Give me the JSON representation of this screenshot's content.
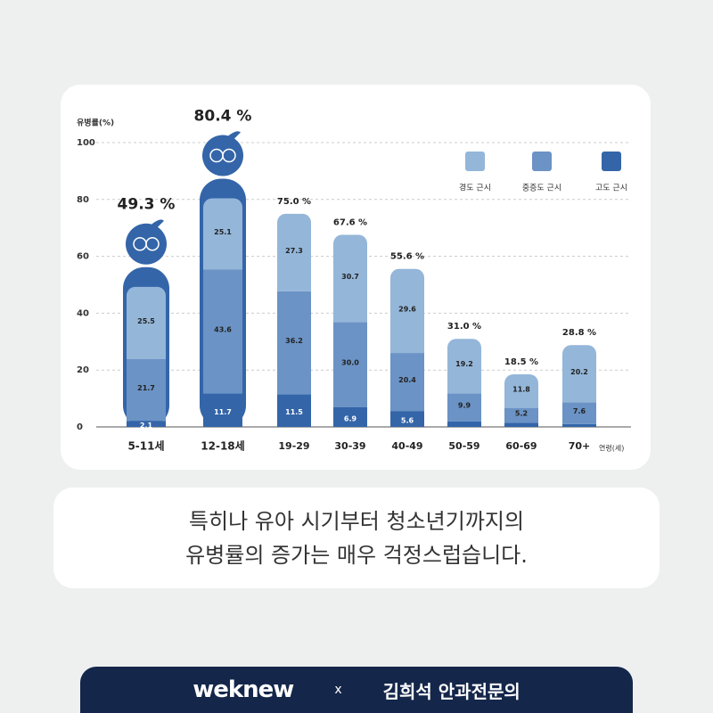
{
  "chart_data": {
    "type": "stacked-bar",
    "y_label": "유병률(%)",
    "x_label": "연령(세)",
    "categories": [
      "5-11세",
      "12-18세",
      "19-29",
      "30-39",
      "40-49",
      "50-59",
      "60-69",
      "70+"
    ],
    "series": [
      {
        "name": "고도 근시",
        "color": "#3465a9",
        "values": [
          2.1,
          11.7,
          11.5,
          6.9,
          5.6,
          1.9,
          1.5,
          1.0
        ],
        "value_labels": [
          "2.1",
          "11.7",
          "11.5",
          "6.9",
          "5.6",
          null,
          null,
          null
        ]
      },
      {
        "name": "중증도 근시",
        "color": "#6b93c5",
        "values": [
          21.7,
          43.6,
          36.2,
          30.0,
          20.4,
          9.9,
          5.2,
          7.6
        ],
        "value_labels": [
          "21.7",
          "43.6",
          "36.2",
          "30.0",
          "20.4",
          "9.9",
          "5.2",
          "7.6"
        ]
      },
      {
        "name": "경도 근시",
        "color": "#94b6d9",
        "values": [
          25.5,
          25.1,
          27.3,
          30.7,
          29.6,
          19.2,
          11.8,
          20.2
        ],
        "value_labels": [
          "25.5",
          "25.1",
          "27.3",
          "30.7",
          "29.6",
          "19.2",
          "11.8",
          "20.2"
        ]
      }
    ],
    "totals": [
      49.3,
      80.4,
      75.0,
      67.6,
      55.6,
      31.0,
      18.5,
      28.8
    ],
    "total_labels": [
      "49.3 %",
      "80.4 %",
      "75.0 %",
      "67.6 %",
      "55.6 %",
      "31.0 %",
      "18.5 %",
      "28.8 %"
    ],
    "ylim": [
      0,
      100
    ],
    "yticks": [
      0,
      20,
      40,
      60,
      80,
      100
    ],
    "grid": true
  },
  "caption": [
    "특히나 유아 시기부터 청소년기까지의",
    "유병률의 증가는 매우 걱정스럽습니다."
  ],
  "footer": {
    "brand": "weknew",
    "sep": "x",
    "partner": "김희석 안과전문의"
  }
}
